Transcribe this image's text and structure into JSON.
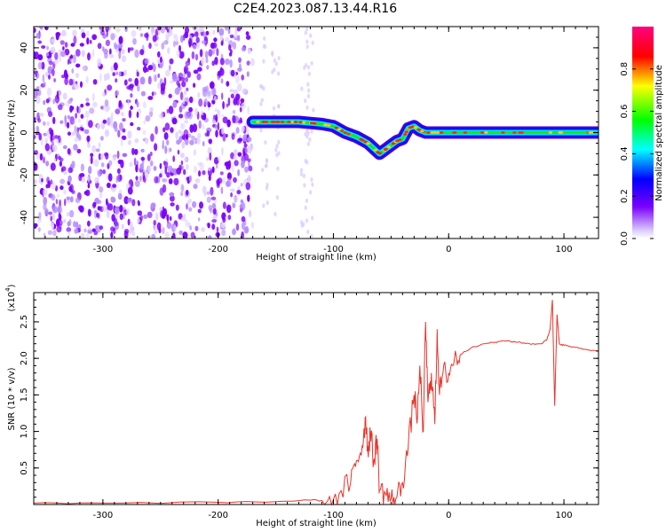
{
  "title": "C2E4.2023.087.13.44.R16",
  "colors": {
    "spectrogram_ramp": [
      "#ffffff",
      "#7b00ff",
      "#0000ff",
      "#00ffff",
      "#00ff00",
      "#ffff00",
      "#ff0000",
      "#ff0080"
    ],
    "snr_line": "#e8332b",
    "axes": "#000000"
  },
  "chart_data": [
    {
      "type": "heatmap",
      "name": "spectrogram",
      "xlabel": "Height of straight line (km)",
      "ylabel": "Frequency (Hz)",
      "xlim": [
        -360,
        130
      ],
      "ylim": [
        -50,
        50
      ],
      "x_ticks": [
        -300,
        -200,
        -100,
        0,
        100
      ],
      "x_tick_labels": [
        "-300",
        "-200",
        "-100",
        "0",
        "100"
      ],
      "y_ticks": [
        -40,
        -20,
        0,
        20,
        40
      ],
      "y_tick_labels": [
        "-40",
        "-20",
        "0",
        "20",
        "40"
      ],
      "noise_region_x": [
        -360,
        -170
      ],
      "sparse_noise_columns_x": [
        -160,
        -150,
        -125,
        -120
      ],
      "signal_track": {
        "x": [
          -170,
          -160,
          -150,
          -140,
          -130,
          -120,
          -110,
          -100,
          -90,
          -80,
          -70,
          -60,
          -55,
          -50,
          -45,
          -40,
          -35,
          -30,
          -25,
          -20,
          -10,
          0,
          20,
          50,
          80,
          100,
          130
        ],
        "frequency": [
          5,
          5,
          5,
          5,
          5,
          4.5,
          4,
          3,
          0,
          -2,
          -5,
          -10,
          -8,
          -6,
          -4,
          -3,
          2,
          3,
          1,
          0,
          0,
          0,
          0,
          0,
          0,
          0,
          0
        ]
      },
      "colorbar": {
        "label": "Normalized spectral amplitude",
        "range": [
          0,
          1
        ],
        "ticks": [
          0.0,
          0.2,
          0.4,
          0.6,
          0.8
        ],
        "tick_labels": [
          "0.0",
          "0.2",
          "0.4",
          "0.6",
          "0.8"
        ]
      }
    },
    {
      "type": "line",
      "name": "snr",
      "xlabel": "Height of straight line (km)",
      "ylabel": "SNR (10 * v/v)",
      "yscale_label": "(x10",
      "yscale_exponent": "4",
      "yscale_close": ")",
      "xlim": [
        -360,
        130
      ],
      "ylim": [
        0,
        2.9
      ],
      "x_ticks": [
        -300,
        -200,
        -100,
        0,
        100
      ],
      "x_tick_labels": [
        "-300",
        "-200",
        "-100",
        "0",
        "100"
      ],
      "y_ticks": [
        0.5,
        1.0,
        1.5,
        2.0,
        2.5
      ],
      "y_tick_labels": [
        "0.5",
        "1.0",
        "1.5",
        "2.0",
        "2.5"
      ],
      "series": [
        {
          "x": [
            -360,
            -300,
            -200,
            -150,
            -120,
            -105,
            -95,
            -85,
            -80,
            -75,
            -72,
            -70,
            -68,
            -65,
            -62,
            -60,
            -55,
            -50,
            -45,
            -40,
            -35,
            -30,
            -27,
            -25,
            -22,
            -20,
            -18,
            -15,
            -12,
            -10,
            -8,
            -5,
            0,
            5,
            10,
            20,
            30,
            40,
            50,
            60,
            70,
            80,
            85,
            88,
            90,
            92,
            94,
            96,
            100,
            110,
            120,
            130
          ],
          "y": [
            0.02,
            0.02,
            0.03,
            0.04,
            0.06,
            0.05,
            0.15,
            0.3,
            0.6,
            0.8,
            1.2,
            0.7,
            1.0,
            0.6,
            0.9,
            0.2,
            0.15,
            0.08,
            0.1,
            0.3,
            0.8,
            1.5,
            1.2,
            1.9,
            1.0,
            2.5,
            1.4,
            1.8,
            1.1,
            2.4,
            1.5,
            1.8,
            1.8,
            2.0,
            2.05,
            2.15,
            2.2,
            2.22,
            2.24,
            2.22,
            2.2,
            2.2,
            2.25,
            2.4,
            2.8,
            1.35,
            2.6,
            2.2,
            2.18,
            2.15,
            2.12,
            2.1
          ]
        }
      ]
    }
  ]
}
